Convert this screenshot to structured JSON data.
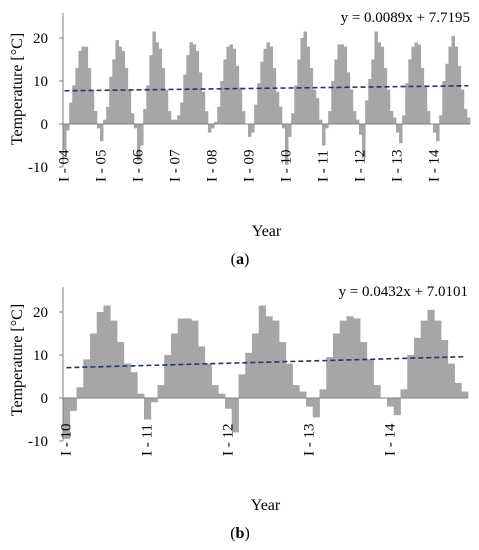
{
  "chart_data": [
    {
      "panel_label": "(a)",
      "type": "bar",
      "xlabel": "Year",
      "ylabel": "Temperature [°C]",
      "ylim": [
        -10,
        25
      ],
      "yticks": [
        -10,
        0,
        10,
        20
      ],
      "grid": false,
      "trend_equation": "y = 0.0089x + 7.7195",
      "trendline": {
        "slope": 0.0089,
        "intercept": 7.7195,
        "style": "dashed"
      },
      "bar_color": "#a6a6a6",
      "trend_color": "#1f3864",
      "xtick_labels": [
        "I - 04",
        "I - 05",
        "I - 06",
        "I - 07",
        "I - 08",
        "I - 09",
        "I - 10",
        "I - 11",
        "I - 12",
        "I - 13",
        "I - 14"
      ],
      "xtick_month_index": [
        0,
        12,
        24,
        36,
        48,
        60,
        72,
        84,
        96,
        108,
        120
      ],
      "values": [
        -6,
        -1.5,
        5,
        9,
        13,
        17,
        18,
        18,
        13,
        8,
        3,
        -1,
        -4,
        1,
        4,
        11,
        15,
        19.5,
        18,
        17,
        13,
        8,
        2.5,
        -1,
        -8.5,
        -5,
        3.5,
        9,
        16,
        21.5,
        19,
        17.5,
        13,
        8,
        3,
        1,
        1,
        2,
        5,
        11.5,
        16,
        19,
        18.5,
        17,
        12,
        7.5,
        3,
        -2,
        -1,
        0.5,
        4,
        10,
        15,
        18,
        18.5,
        17.5,
        13.5,
        8.5,
        3,
        0,
        -3,
        -2,
        4.5,
        9.5,
        14.5,
        17.5,
        19,
        18,
        13,
        7.5,
        4,
        -1,
        -9.5,
        -3,
        2.5,
        9,
        15,
        20,
        21.5,
        18,
        13,
        8,
        6,
        1,
        -5,
        -1,
        3,
        10,
        15,
        18.5,
        18.5,
        18,
        12,
        8,
        3,
        1,
        -2.5,
        -8,
        5.5,
        10.5,
        15,
        21.5,
        19,
        18,
        13,
        8,
        3,
        1.5,
        -2,
        -4.5,
        2,
        9.5,
        15,
        18,
        19,
        18.5,
        13,
        9,
        3,
        0,
        -2,
        -4,
        2,
        10,
        14,
        18,
        20.5,
        18,
        13.5,
        8,
        3.5,
        1.5
      ]
    },
    {
      "panel_label": "(b)",
      "type": "bar",
      "xlabel": "Year",
      "ylabel": "Temperature [°C]",
      "ylim": [
        -10,
        25
      ],
      "yticks": [
        -10,
        0,
        10,
        20
      ],
      "grid": false,
      "trend_equation": "y = 0.0432x + 7.0101",
      "trendline": {
        "slope": 0.0432,
        "intercept": 7.0101,
        "style": "dashed"
      },
      "bar_color": "#a6a6a6",
      "trend_color": "#1f3864",
      "xtick_labels": [
        "I - 10",
        "I - 11",
        "I - 12",
        "I - 13",
        "I - 14"
      ],
      "xtick_month_index": [
        0,
        12,
        24,
        36,
        48
      ],
      "values": [
        -9.5,
        -3,
        2.5,
        9,
        15,
        20,
        21.5,
        18,
        13,
        8,
        6,
        1,
        -5,
        -1,
        3,
        10,
        15,
        18.5,
        18.5,
        18,
        12,
        8,
        3,
        1,
        -2.5,
        -8,
        5.5,
        10.5,
        15,
        21.5,
        19,
        18,
        13,
        8,
        3,
        1.5,
        -2,
        -4.5,
        2,
        9.5,
        15,
        18,
        19,
        18.5,
        13,
        9,
        3,
        0,
        -2,
        -4,
        2,
        10,
        14,
        18,
        20.5,
        18,
        13.5,
        8,
        3.5,
        1.5
      ]
    }
  ]
}
